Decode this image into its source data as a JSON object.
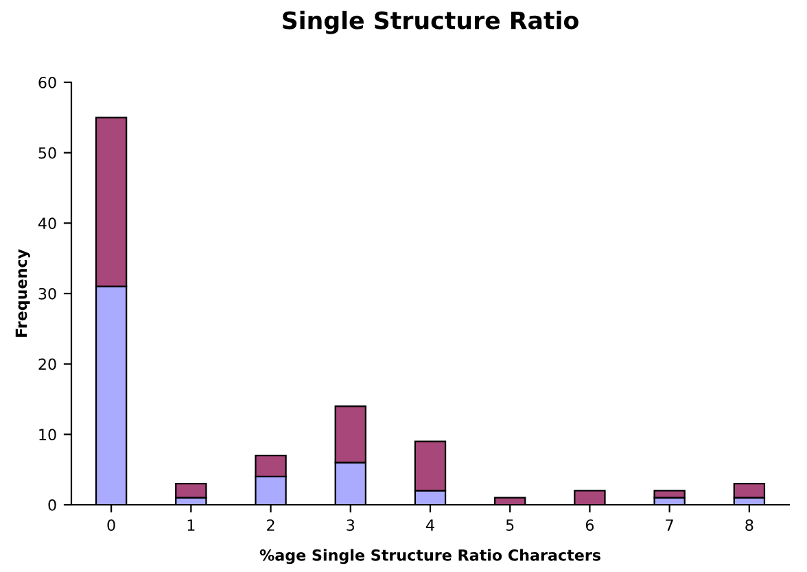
{
  "chart_data": {
    "type": "bar",
    "title": "Single Structure Ratio",
    "xlabel": "%age Single Structure Ratio Characters",
    "ylabel": "Frequency",
    "categories": [
      "0",
      "1",
      "2",
      "3",
      "4",
      "5",
      "6",
      "7",
      "8"
    ],
    "stacked": true,
    "series": [
      {
        "color": "#aaaaff",
        "values": [
          31,
          1,
          4,
          6,
          2,
          0,
          0,
          1,
          1
        ]
      },
      {
        "color": "#a8477a",
        "values": [
          24,
          2,
          3,
          8,
          7,
          1,
          2,
          1,
          2
        ]
      }
    ],
    "ylim": [
      0,
      60
    ],
    "yticks": [
      0,
      10,
      20,
      30,
      40,
      50,
      60
    ],
    "grid": false
  }
}
